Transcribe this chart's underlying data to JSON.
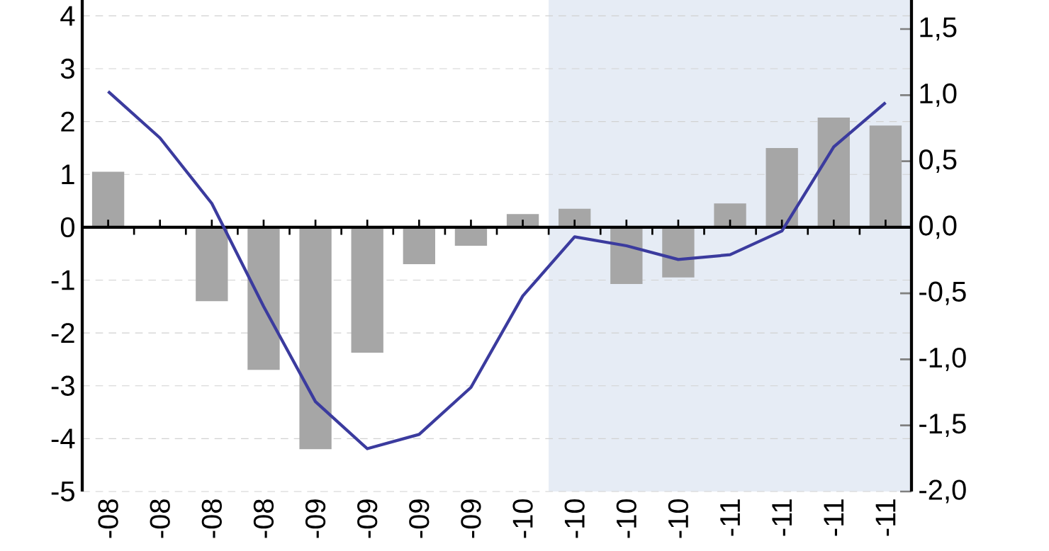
{
  "chart_data": {
    "type": "bar",
    "categories": [
      "-08",
      "-08",
      "-08",
      "-08",
      "-09",
      "-09",
      "-09",
      "-09",
      "-10",
      "-10",
      "-10",
      "-10",
      "-11",
      "-11",
      "-11",
      "-11"
    ],
    "series": [
      {
        "axis": "y2",
        "color": "#a6a6a6",
        "values": [
          0.42,
          0,
          -0.56,
          -1.08,
          -1.68,
          -0.95,
          -0.28,
          -0.14,
          0.1,
          0.14,
          -0.43,
          -0.38,
          0.18,
          0.6,
          0.83,
          0.77
        ]
      },
      {
        "type": "line",
        "axis": "y",
        "color": "#3b3b9e",
        "values": [
          2.57,
          1.69,
          0.45,
          -1.5,
          -3.3,
          -4.19,
          -3.92,
          -3.03,
          -1.3,
          -0.18,
          -0.35,
          -0.61,
          -0.52,
          -0.07,
          1.52,
          2.36
        ]
      }
    ],
    "ylim": [
      -5,
      4.3
    ],
    "yticks": [
      -5,
      -4,
      -3,
      -2,
      -1,
      0,
      1,
      2,
      3,
      4
    ],
    "y2lim": [
      -2,
      1.72
    ],
    "y2ticks": [
      {
        "value": -2,
        "label": "-2,0"
      },
      {
        "value": -1.5,
        "label": "-1,5"
      },
      {
        "value": -1,
        "label": "-1,0"
      },
      {
        "value": -0.5,
        "label": "-0,5"
      },
      {
        "value": 0,
        "label": "0,0"
      },
      {
        "value": 0.5,
        "label": "0,5"
      },
      {
        "value": 1,
        "label": "1,0"
      },
      {
        "value": 1.5,
        "label": "1,5"
      }
    ],
    "grid": "y"
  }
}
